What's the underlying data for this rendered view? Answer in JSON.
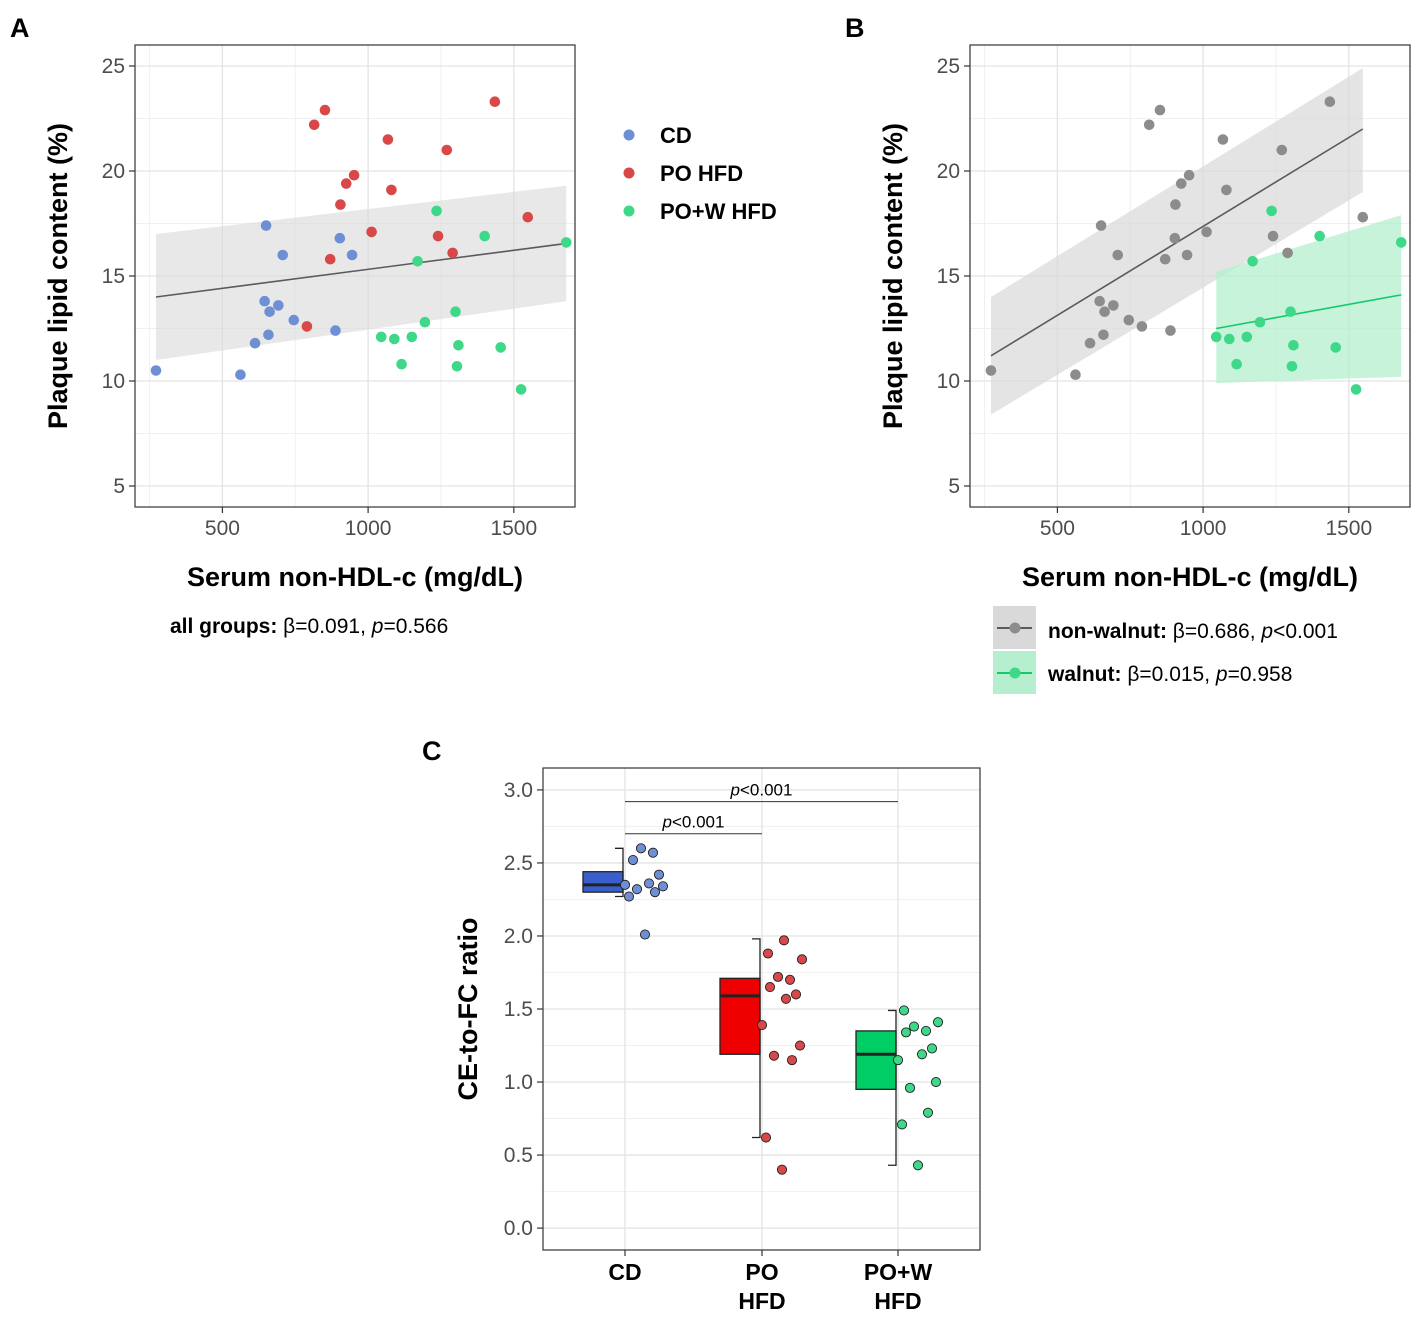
{
  "colors": {
    "CD": "#6f8fd4",
    "PO HFD": "#d94848",
    "PO+W HFD": "#3dd888",
    "gray_points": "#8c8c8c",
    "gray_line": "#5a5a5a",
    "gray_band": "#d9d9d9",
    "walnut_line": "#14c96c",
    "walnut_band": "#b5efcf",
    "box_CD": "#3a5fcd",
    "box_PO": "#ee0000",
    "box_POW": "#00cd66"
  },
  "panels": {
    "A": {
      "letter": "A",
      "chart_data": {
        "type": "scatter",
        "xlabel": "Serum non-HDL-c (mg/dL)",
        "ylabel": "Plaque lipid content (%)",
        "xlim": [
          200,
          1710
        ],
        "ylim": [
          4,
          26
        ],
        "xticks": [
          500,
          1000,
          1500
        ],
        "yticks": [
          5,
          10,
          15,
          20,
          25
        ],
        "series": [
          {
            "name": "CD",
            "points": [
              [
                272,
                10.5
              ],
              [
                562,
                10.3
              ],
              [
                612,
                11.8
              ],
              [
                645,
                13.8
              ],
              [
                650,
                17.4
              ],
              [
                658,
                12.2
              ],
              [
                662,
                13.3
              ],
              [
                692,
                13.6
              ],
              [
                707,
                16.0
              ],
              [
                745,
                12.9
              ],
              [
                888,
                12.4
              ],
              [
                903,
                16.8
              ],
              [
                945,
                16.0
              ]
            ]
          },
          {
            "name": "PO HFD",
            "points": [
              [
                790,
                12.6
              ],
              [
                815,
                22.2
              ],
              [
                852,
                22.9
              ],
              [
                870,
                15.8
              ],
              [
                905,
                18.4
              ],
              [
                925,
                19.4
              ],
              [
                952,
                19.8
              ],
              [
                1012,
                17.1
              ],
              [
                1068,
                21.5
              ],
              [
                1080,
                19.1
              ],
              [
                1240,
                16.9
              ],
              [
                1270,
                21.0
              ],
              [
                1290,
                16.1
              ],
              [
                1435,
                23.3
              ],
              [
                1548,
                17.8
              ]
            ]
          },
          {
            "name": "PO+W HFD",
            "points": [
              [
                1045,
                12.1
              ],
              [
                1090,
                12.0
              ],
              [
                1115,
                10.8
              ],
              [
                1150,
                12.1
              ],
              [
                1170,
                15.7
              ],
              [
                1195,
                12.8
              ],
              [
                1235,
                18.1
              ],
              [
                1300,
                13.3
              ],
              [
                1310,
                11.7
              ],
              [
                1305,
                10.7
              ],
              [
                1400,
                16.9
              ],
              [
                1455,
                11.6
              ],
              [
                1525,
                9.6
              ],
              [
                1680,
                16.6
              ]
            ]
          }
        ],
        "regression": {
          "x": [
            272,
            1680
          ],
          "y": [
            14.0,
            16.55
          ],
          "ci_lower": [
            11.0,
            13.8
          ],
          "ci_upper": [
            17.0,
            19.3
          ]
        }
      },
      "legend": [
        "CD",
        "PO HFD",
        "PO+W HFD"
      ],
      "stat": {
        "label": "all groups:",
        "beta": " β=0.091, ",
        "p_letter": "p",
        "p_value": "=0.566"
      }
    },
    "B": {
      "letter": "B",
      "chart_data": {
        "type": "scatter",
        "xlabel": "Serum non-HDL-c (mg/dL)",
        "ylabel": "Plaque lipid content (%)",
        "xlim": [
          200,
          1710
        ],
        "ylim": [
          4,
          26
        ],
        "xticks": [
          500,
          1000,
          1500
        ],
        "yticks": [
          5,
          10,
          15,
          20,
          25
        ],
        "series": [
          {
            "name": "non-walnut",
            "points": [
              [
                272,
                10.5
              ],
              [
                562,
                10.3
              ],
              [
                612,
                11.8
              ],
              [
                645,
                13.8
              ],
              [
                650,
                17.4
              ],
              [
                658,
                12.2
              ],
              [
                662,
                13.3
              ],
              [
                692,
                13.6
              ],
              [
                707,
                16.0
              ],
              [
                745,
                12.9
              ],
              [
                790,
                12.6
              ],
              [
                815,
                22.2
              ],
              [
                852,
                22.9
              ],
              [
                870,
                15.8
              ],
              [
                888,
                12.4
              ],
              [
                903,
                16.8
              ],
              [
                905,
                18.4
              ],
              [
                925,
                19.4
              ],
              [
                945,
                16.0
              ],
              [
                952,
                19.8
              ],
              [
                1012,
                17.1
              ],
              [
                1068,
                21.5
              ],
              [
                1080,
                19.1
              ],
              [
                1240,
                16.9
              ],
              [
                1270,
                21.0
              ],
              [
                1290,
                16.1
              ],
              [
                1435,
                23.3
              ],
              [
                1548,
                17.8
              ]
            ]
          },
          {
            "name": "walnut",
            "points": [
              [
                1045,
                12.1
              ],
              [
                1090,
                12.0
              ],
              [
                1115,
                10.8
              ],
              [
                1150,
                12.1
              ],
              [
                1170,
                15.7
              ],
              [
                1195,
                12.8
              ],
              [
                1235,
                18.1
              ],
              [
                1300,
                13.3
              ],
              [
                1310,
                11.7
              ],
              [
                1305,
                10.7
              ],
              [
                1400,
                16.9
              ],
              [
                1455,
                11.6
              ],
              [
                1525,
                9.6
              ],
              [
                1680,
                16.6
              ]
            ]
          }
        ],
        "regressions": [
          {
            "name": "non-walnut",
            "x": [
              272,
              1548
            ],
            "y": [
              11.2,
              22.0
            ],
            "ci_lower": [
              8.4,
              19.0
            ],
            "ci_upper": [
              14.0,
              24.9
            ]
          },
          {
            "name": "walnut",
            "x": [
              1045,
              1680
            ],
            "y": [
              12.5,
              14.1
            ],
            "ci_lower": [
              9.9,
              10.2
            ],
            "ci_upper": [
              15.2,
              17.9
            ]
          }
        ]
      },
      "legend": [
        {
          "name": "non-walnut",
          "label": "non-walnut:",
          "beta": " β=0.686, ",
          "p_letter": "p",
          "p_value": "<0.001"
        },
        {
          "name": "walnut",
          "label": "walnut:",
          "beta": " β=0.015, ",
          "p_letter": "p",
          "p_value": "=0.958"
        }
      ]
    },
    "C": {
      "letter": "C",
      "chart_data": {
        "type": "box",
        "ylabel": "CE-to-FC ratio",
        "ylim": [
          -0.15,
          3.15
        ],
        "yticks": [
          "0.0",
          "0.5",
          "1.0",
          "1.5",
          "2.0",
          "2.5",
          "3.0"
        ],
        "categories": [
          [
            "CD"
          ],
          [
            "PO",
            "HFD"
          ],
          [
            "PO+W",
            "HFD"
          ]
        ],
        "groups": [
          {
            "name": "CD",
            "q1": 2.3,
            "median": 2.35,
            "q3": 2.44,
            "whisker_low": 2.27,
            "whisker_high": 2.6,
            "points": [
              2.01,
              2.27,
              2.3,
              2.32,
              2.34,
              2.35,
              2.36,
              2.42,
              2.52,
              2.57,
              2.6
            ]
          },
          {
            "name": "PO HFD",
            "q1": 1.19,
            "median": 1.59,
            "q3": 1.71,
            "whisker_low": 0.62,
            "whisker_high": 1.98,
            "points": [
              0.4,
              0.62,
              1.15,
              1.18,
              1.25,
              1.39,
              1.57,
              1.6,
              1.65,
              1.7,
              1.72,
              1.84,
              1.88,
              1.97
            ]
          },
          {
            "name": "PO+W HFD",
            "q1": 0.95,
            "median": 1.19,
            "q3": 1.35,
            "whisker_low": 0.43,
            "whisker_high": 1.49,
            "points": [
              0.43,
              0.71,
              0.79,
              0.96,
              1.0,
              1.15,
              1.19,
              1.23,
              1.34,
              1.35,
              1.38,
              1.41,
              1.49
            ]
          }
        ],
        "comparisons": [
          {
            "from": 0,
            "to": 1,
            "y": 2.7,
            "label": "<0.001"
          },
          {
            "from": 0,
            "to": 2,
            "y": 2.92,
            "label": "<0.001"
          }
        ]
      }
    }
  }
}
